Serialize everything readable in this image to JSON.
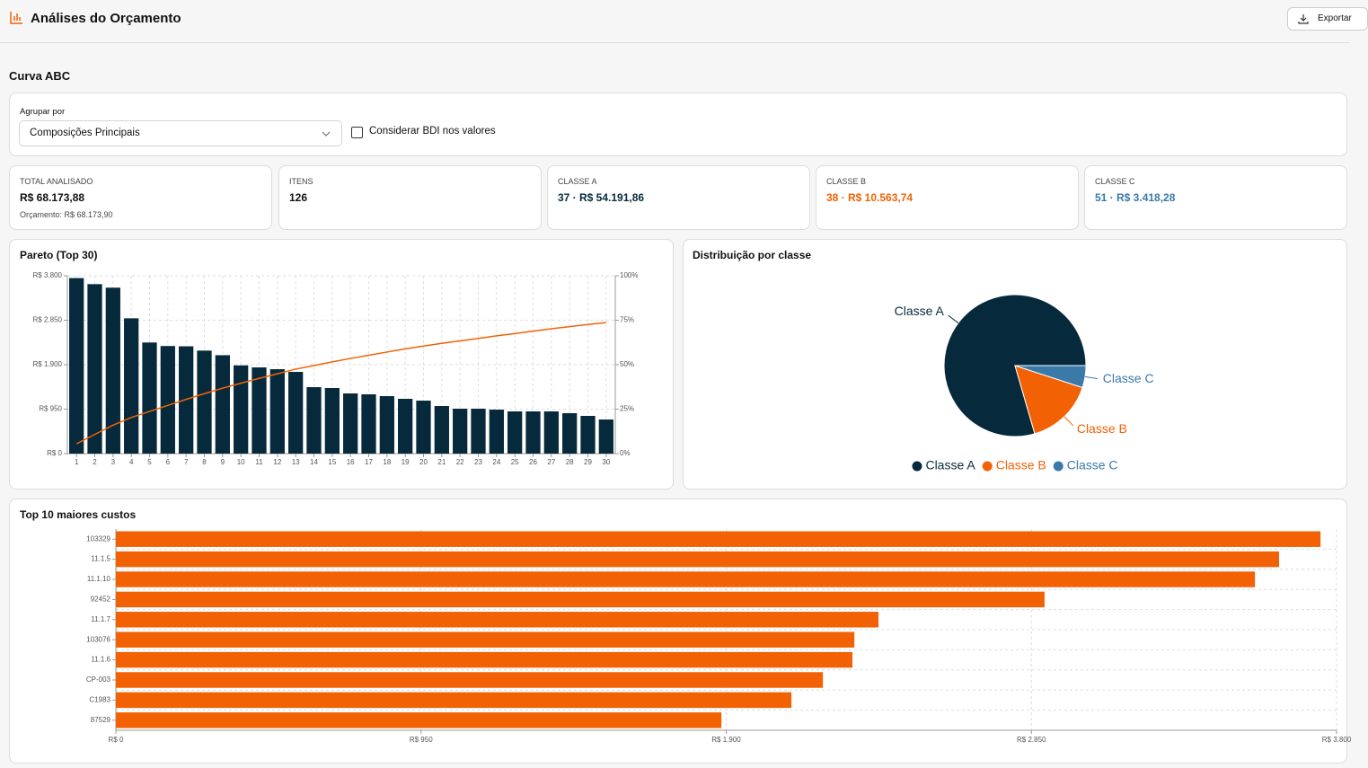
{
  "header": {
    "title": "Análises do Orçamento",
    "export_button": "Exportar"
  },
  "section_title": "Curva ABC",
  "filters": {
    "group_label": "Agrupar por",
    "group_value": "Composições Principais",
    "bdi_label": "Considerar BDI nos valores"
  },
  "stats": [
    {
      "label": "TOTAL ANALISADO",
      "value": "R$ 68.173,88",
      "note": "Orçamento: R$ 68.173,90",
      "color": "#111111"
    },
    {
      "label": "ITENS",
      "value": "126",
      "color": "#111111"
    },
    {
      "label": "CLASSE A",
      "value": "37 · R$ 54.191,86",
      "color": "#062a3c"
    },
    {
      "label": "CLASSE B",
      "value": "38 · R$ 10.563,74",
      "color": "#f26205"
    },
    {
      "label": "CLASSE C",
      "value": "51 · R$ 3.418,28",
      "color": "#3b7aa8"
    }
  ],
  "chart_data": [
    {
      "type": "bar",
      "title": "Pareto (Top 30)",
      "categories": [
        "1",
        "2",
        "3",
        "4",
        "5",
        "6",
        "7",
        "8",
        "9",
        "10",
        "11",
        "12",
        "13",
        "14",
        "15",
        "16",
        "17",
        "18",
        "19",
        "20",
        "21",
        "22",
        "23",
        "24",
        "25",
        "26",
        "27",
        "28",
        "29",
        "30"
      ],
      "series": [
        {
          "type": "bar",
          "color": "#062a3c",
          "values": [
            3750,
            3621,
            3546,
            2891,
            2374,
            2299,
            2293,
            2201,
            2103,
            1885,
            1842,
            1804,
            1746,
            1420,
            1401,
            1286,
            1267,
            1228,
            1171,
            1132,
            1017,
            960,
            960,
            940,
            902,
            902,
            902,
            864,
            806,
            729
          ]
        },
        {
          "type": "line",
          "axis": "y2",
          "color": "#f26205",
          "values": [
            5.5,
            10.8,
            16.0,
            20.3,
            23.7,
            27.1,
            30.5,
            33.7,
            36.8,
            39.6,
            42.3,
            44.9,
            47.5,
            49.5,
            51.6,
            53.5,
            55.3,
            57.1,
            58.9,
            60.5,
            62.0,
            63.4,
            64.8,
            66.2,
            67.5,
            68.9,
            70.2,
            71.4,
            72.6,
            73.7
          ]
        }
      ],
      "ylim": [
        0,
        3800
      ],
      "yticks": [
        {
          "value": 0,
          "label": "R$ 0"
        },
        {
          "value": 950,
          "label": "R$ 950"
        },
        {
          "value": 1900,
          "label": "R$ 1.900"
        },
        {
          "value": 2850,
          "label": "R$ 2.850"
        },
        {
          "value": 3800,
          "label": "R$ 3.800"
        }
      ],
      "y2lim": [
        0,
        100
      ],
      "y2ticks": [
        {
          "value": 0,
          "label": "0%"
        },
        {
          "value": 25,
          "label": "25%"
        },
        {
          "value": 50,
          "label": "50%"
        },
        {
          "value": 75,
          "label": "75%"
        },
        {
          "value": 100,
          "label": "100%"
        }
      ],
      "grid": true
    },
    {
      "type": "pie",
      "title": "Distribuição por classe",
      "categories": [
        "Classe A",
        "Classe B",
        "Classe C"
      ],
      "values": [
        54191.86,
        10563.74,
        3418.28
      ],
      "colors": [
        "#062a3c",
        "#f26205",
        "#3b7aa8"
      ],
      "legend": "bottom"
    },
    {
      "type": "bar",
      "orientation": "horizontal",
      "title": "Top 10 maiores custos",
      "categories": [
        "103329",
        "11.1.5",
        "11.1.10",
        "92452",
        "11.1.7",
        "103076",
        "11.1.6",
        "CP-003",
        "C1983",
        "87529"
      ],
      "values": [
        3750,
        3621,
        3546,
        2891,
        2374,
        2299,
        2293,
        2201,
        2103,
        1885
      ],
      "color": "#f26205",
      "xlim": [
        0,
        3800
      ],
      "xticks": [
        {
          "value": 0,
          "label": "R$ 0"
        },
        {
          "value": 950,
          "label": "R$ 950"
        },
        {
          "value": 1900,
          "label": "R$ 1.900"
        },
        {
          "value": 2850,
          "label": "R$ 2.850"
        },
        {
          "value": 3800,
          "label": "R$ 3.800"
        }
      ],
      "grid": true
    }
  ]
}
